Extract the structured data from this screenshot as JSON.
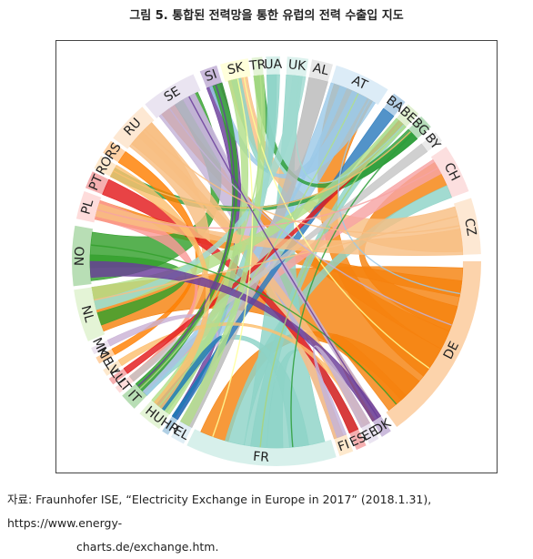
{
  "figure": {
    "title": "그림 5. 통합된 전력망을 통한 유럽의 전력 수출입 지도"
  },
  "chord": {
    "countries": [
      {
        "code": "UK",
        "color": "#9fd9cf"
      },
      {
        "code": "AL",
        "color": "#b9b9b9"
      },
      {
        "code": "AT",
        "color": "#9cc9e8"
      },
      {
        "code": "BA",
        "color": "#2c7bbd"
      },
      {
        "code": "BE",
        "color": "#a9d47a"
      },
      {
        "code": "BG",
        "color": "#2e9e3a"
      },
      {
        "code": "BY",
        "color": "#c6c6c6"
      },
      {
        "code": "CH",
        "color": "#f7a3a3"
      },
      {
        "code": "CZ",
        "color": "#f8be82"
      },
      {
        "code": "DE",
        "color": "#f5820f"
      },
      {
        "code": "DK",
        "color": "#6a3d9a"
      },
      {
        "code": "EE",
        "color": "#c4b3d8"
      },
      {
        "code": "ES",
        "color": "#e31a1c"
      },
      {
        "code": "FI",
        "color": "#fdbf6f"
      },
      {
        "code": "FR",
        "color": "#8dd3c7"
      },
      {
        "code": "EL",
        "color": "#a6cee3"
      },
      {
        "code": "HR",
        "color": "#1f78b4"
      },
      {
        "code": "HU",
        "color": "#b2df8a"
      },
      {
        "code": "IT",
        "color": "#33a02c"
      },
      {
        "code": "LT",
        "color": "#fb9a99"
      },
      {
        "code": "LU",
        "color": "#e31a1c"
      },
      {
        "code": "LV",
        "color": "#fdbf6f"
      },
      {
        "code": "ME",
        "color": "#ff7f00"
      },
      {
        "code": "MK",
        "color": "#cab2d6"
      },
      {
        "code": "NL",
        "color": "#b2df8a"
      },
      {
        "code": "NO",
        "color": "#33a02c"
      },
      {
        "code": "PL",
        "color": "#fb9a99"
      },
      {
        "code": "PT",
        "color": "#e31a1c"
      },
      {
        "code": "RO",
        "color": "#fdbf6f"
      },
      {
        "code": "RS",
        "color": "#ff7f00"
      },
      {
        "code": "RU",
        "color": "#f8be82"
      },
      {
        "code": "SE",
        "color": "#c4b3d8"
      },
      {
        "code": "SI",
        "color": "#6a3d9a"
      },
      {
        "code": "SK",
        "color": "#ffff99"
      },
      {
        "code": "TR",
        "color": "#b2df8a"
      },
      {
        "code": "UA",
        "color": "#8dd3c7"
      }
    ]
  },
  "source": {
    "line1": "자료: Fraunhofer ISE, “Electricity Exchange in Europe in 2017” (2018.1.31), https://www.energy-",
    "line2": "charts.de/exchange.htm."
  }
}
